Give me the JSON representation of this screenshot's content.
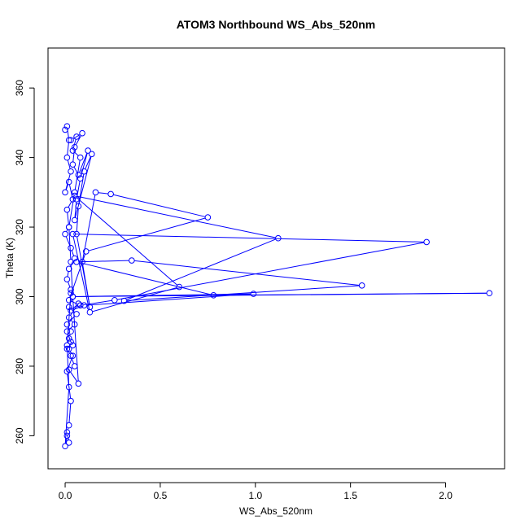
{
  "chart_data": {
    "type": "line",
    "title": "ATOM3 Northbound WS_Abs_520nm",
    "xlabel": "WS_Abs_520nm",
    "ylabel": "Theta (K)",
    "xlim": [
      -0.09,
      2.31
    ],
    "ylim": [
      250.5,
      371.5
    ],
    "xticks": [
      0.0,
      0.5,
      1.0,
      1.5,
      2.0
    ],
    "xtick_labels": [
      "0.0",
      "0.5",
      "1.0",
      "1.5",
      "2.0"
    ],
    "yticks": [
      260,
      280,
      300,
      320,
      340,
      360
    ],
    "ytick_labels": [
      "260",
      "280",
      "300",
      "320",
      "340",
      "360"
    ],
    "grid": false,
    "series": [
      {
        "color": "#0000ff",
        "marker": "open-circle",
        "x": [
          0.0,
          0.01,
          0.02,
          0.01,
          0.03,
          0.0,
          0.02,
          0.04,
          0.01,
          0.02,
          0.0,
          0.03,
          0.05,
          0.02,
          0.01,
          0.03,
          0.04,
          0.02,
          0.06,
          0.01,
          0.03,
          0.02,
          0.04,
          0.01,
          0.03,
          0.05,
          0.02,
          0.07,
          0.04,
          0.03,
          0.02,
          0.05,
          0.08,
          0.04,
          0.06,
          0.03,
          0.09,
          0.05,
          0.04,
          0.07,
          0.12,
          0.08,
          0.06,
          0.05,
          0.14,
          0.1,
          0.07,
          0.06,
          0.13,
          0.09,
          0.16,
          0.24,
          0.75,
          0.11,
          0.02,
          0.08,
          0.26,
          1.9,
          0.04,
          0.13,
          0.6,
          0.05,
          1.12,
          0.31,
          1.56,
          0.35,
          0.06,
          0.78,
          2.23,
          0.04,
          0.99,
          0.1,
          0.03,
          0.07,
          0.02,
          0.05,
          0.01,
          0.03,
          0.02,
          0.04,
          0.01,
          0.03,
          0.02,
          0.01,
          0.02,
          0.01,
          0.0,
          0.02,
          0.01,
          0.03
        ],
        "y": [
          348.0,
          349.0,
          345.0,
          340.0,
          336.0,
          330.0,
          333.0,
          328.0,
          325.0,
          320.0,
          318.0,
          314.0,
          311.0,
          308.0,
          305.0,
          302.0,
          300.0,
          297.0,
          295.0,
          292.0,
          290.0,
          288.0,
          286.0,
          285.0,
          283.0,
          280.0,
          279.0,
          275.0,
          300.0,
          310.0,
          320.0,
          330.0,
          340.0,
          342.0,
          346.0,
          345.0,
          347.0,
          343.0,
          338.0,
          335.0,
          342.0,
          334.0,
          328.0,
          322.0,
          341.0,
          336.0,
          326.0,
          318.0,
          297.0,
          310.0,
          330.0,
          329.5,
          322.8,
          313.0,
          299.0,
          297.5,
          299.0,
          315.7,
          318.0,
          295.5,
          302.8,
          329.0,
          316.8,
          298.8,
          303.2,
          310.4,
          310.0,
          300.4,
          301.0,
          300.0,
          300.8,
          297.5,
          296.0,
          298.0,
          294.0,
          292.0,
          290.0,
          287.0,
          285.0,
          283.0,
          278.5,
          270.0,
          263.0,
          261.0,
          258.0,
          260.0,
          257.0,
          274.0,
          286.0,
          301.0
        ]
      }
    ]
  }
}
